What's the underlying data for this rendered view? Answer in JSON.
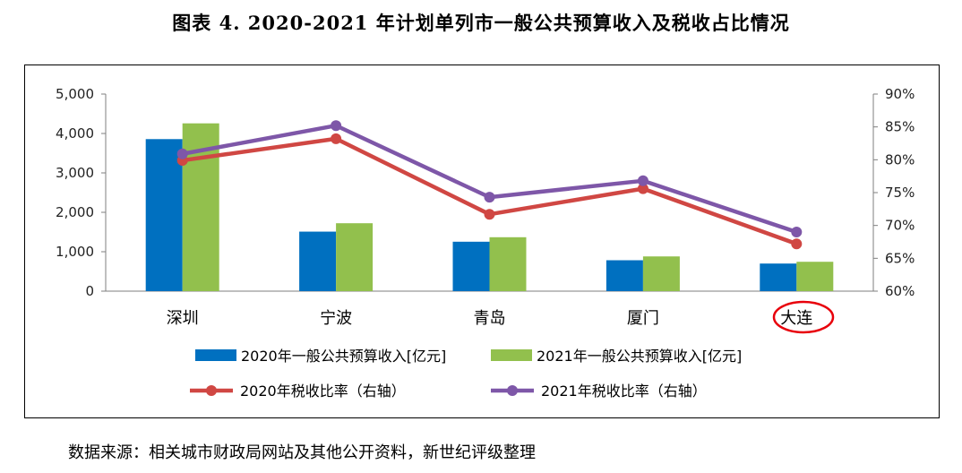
{
  "figure_title": "图表 4.   2020-2021 年计划单列市一般公共预算收入及税收占比情况",
  "source_note": "数据来源：相关城市财政局网站及其他公开资料，新世纪评级整理",
  "chart_data": {
    "type": "bar+line",
    "categories": [
      "深圳",
      "宁波",
      "青岛",
      "厦门",
      "大连"
    ],
    "highlighted_category": "大连",
    "bar_series": [
      {
        "name": "2020年一般公共预算收入[亿元]",
        "color": "#0070C0",
        "values": [
          3857,
          1510,
          1254,
          784,
          700
        ]
      },
      {
        "name": "2021年一般公共预算收入[亿元]",
        "color": "#92C04D",
        "values": [
          4257,
          1723,
          1368,
          881,
          745
        ]
      }
    ],
    "line_series": [
      {
        "name": "2020年税收比率（右轴）",
        "color": "#D04743",
        "values": [
          79.9,
          83.2,
          71.7,
          75.6,
          67.2
        ]
      },
      {
        "name": "2021年税收比率（右轴）",
        "color": "#7E57A8",
        "values": [
          80.9,
          85.2,
          74.3,
          76.8,
          69.0
        ]
      }
    ],
    "y_left": {
      "min": 0,
      "max": 5000,
      "ticks": [
        "0",
        "1,000",
        "2,000",
        "3,000",
        "4,000",
        "5,000"
      ]
    },
    "y_right": {
      "min": 60,
      "max": 90,
      "ticks": [
        "60%",
        "65%",
        "70%",
        "75%",
        "80%",
        "85%",
        "90%"
      ]
    },
    "legend_position": "bottom",
    "grid": false
  }
}
